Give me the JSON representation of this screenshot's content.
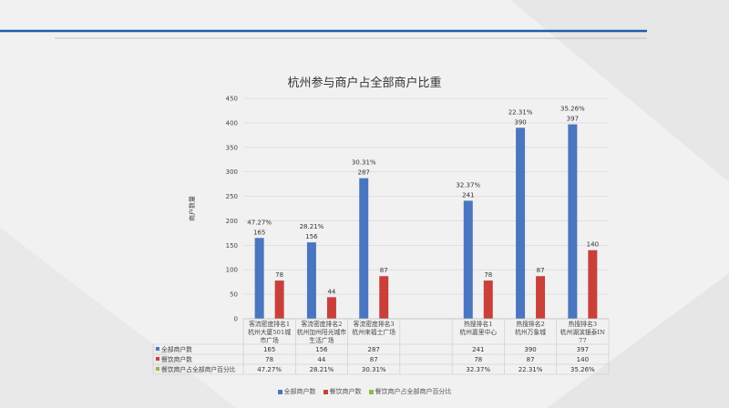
{
  "chart_data": {
    "type": "bar",
    "title": "杭州参与商户占全部商户比重",
    "xlabel": "",
    "ylabel": "商户数量",
    "ylim": [
      0,
      450
    ],
    "yticks": [
      0,
      50,
      100,
      150,
      200,
      250,
      300,
      350,
      400,
      450
    ],
    "grid": true,
    "legend_position": "bottom",
    "categories": [
      "客流密度排名1 杭州大厦501城市广场",
      "客流密度排名2 杭州加州阳光城市生活广场",
      "客流密度排名3 杭州来福士广场",
      "",
      "热搜排名1 杭州嘉里中心",
      "热搜排名2 杭州万象城",
      "热搜排名3 杭州湖滨银泰IN77"
    ],
    "series": [
      {
        "name": "全部商户数",
        "color": "#4a76c0",
        "values": [
          165,
          156,
          287,
          null,
          241,
          390,
          397
        ]
      },
      {
        "name": "餐饮商户数",
        "color": "#c9403b",
        "values": [
          78,
          44,
          87,
          null,
          78,
          87,
          140
        ]
      },
      {
        "name": "餐饮商户占全部商户百分比",
        "color": "#93b84a",
        "values": [
          "47.27%",
          "28.21%",
          "30.31%",
          null,
          "32.37%",
          "22.31%",
          "35.26%"
        ]
      }
    ],
    "table_rows": [
      {
        "label": "全部商户数",
        "color": "#4a76c0",
        "cells": [
          "165",
          "156",
          "287",
          "",
          "241",
          "390",
          "397"
        ]
      },
      {
        "label": "餐饮商户数",
        "color": "#c9403b",
        "cells": [
          "78",
          "44",
          "87",
          "",
          "78",
          "87",
          "140"
        ]
      },
      {
        "label": "餐饮商户占全部商户百分比",
        "color": "#93b84a",
        "cells": [
          "47.27%",
          "28.21%",
          "30.31%",
          "",
          "32.37%",
          "22.31%",
          "35.26%"
        ]
      }
    ]
  }
}
